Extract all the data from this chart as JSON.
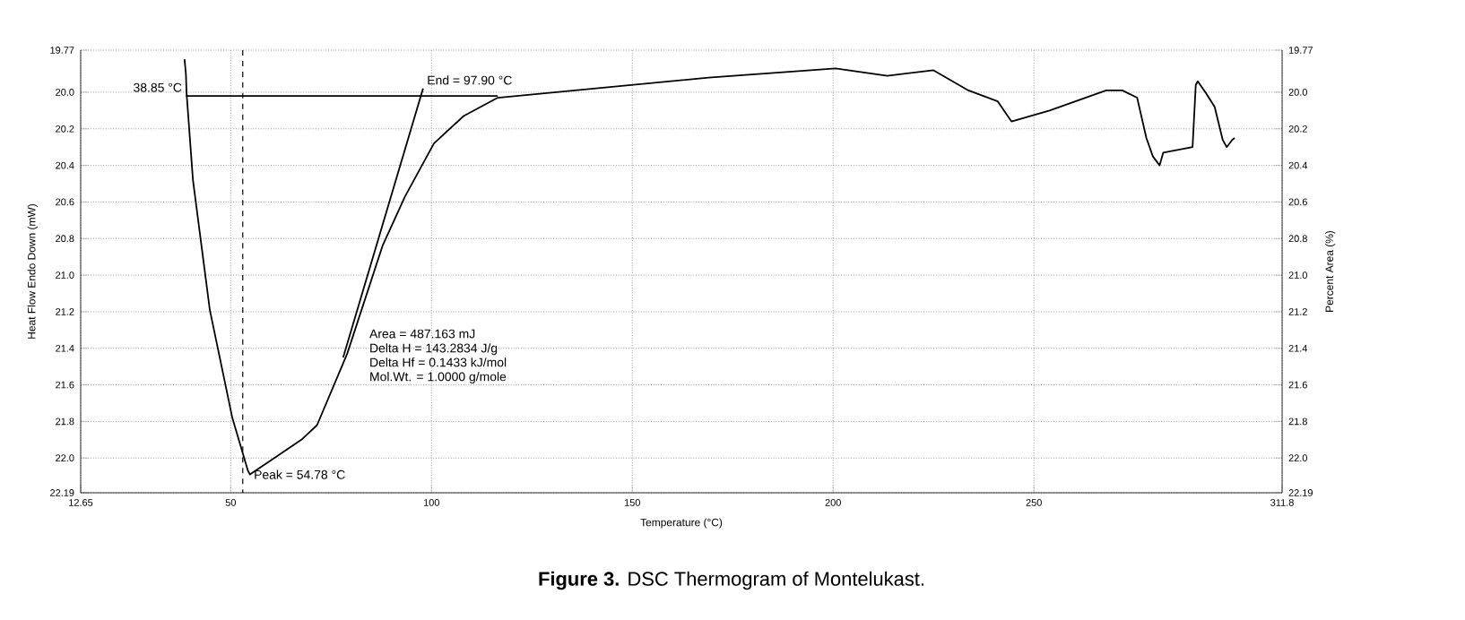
{
  "chart_data": {
    "type": "line",
    "title": "**Figure 3.** DSC Thermogram of Montelukast.",
    "xlabel": "Temperature (°C)",
    "ylabel": "Heat Flow Endo Down (mW)",
    "y2label": "Percent Area (%)",
    "xlim": [
      12.65,
      311.8
    ],
    "xticks": [
      12.65,
      50,
      100,
      150,
      200,
      250,
      311.8
    ],
    "ylim": [
      22.19,
      19.77
    ],
    "yticks": [
      19.77,
      {
        "value": 20.0,
        "label": "20.0"
      },
      20.2,
      20.4,
      20.6,
      20.8,
      {
        "value": 21.0,
        "label": "21.0"
      },
      21.2,
      21.4,
      21.6,
      21.8,
      {
        "value": 22.0,
        "label": "22.0"
      },
      22.19
    ],
    "y2lim": [
      22.19,
      19.77
    ],
    "y2ticks": [
      19.77,
      {
        "value": 20.0,
        "label": "20.0"
      },
      20.2,
      20.4,
      20.6,
      20.8,
      {
        "value": 21.0,
        "label": "21.0"
      },
      21.2,
      21.4,
      21.6,
      21.8,
      {
        "value": 22.0,
        "label": "22.0"
      },
      22.19
    ],
    "grid": true,
    "series": [
      {
        "color": "#000000",
        "x": [
          38.5,
          38.85,
          39.0,
          40.6,
          44.8,
          50.4,
          54.3,
          54.8,
          67.6,
          71.5,
          79,
          87.8,
          93.4,
          100.6,
          108,
          116.5,
          169,
          200.6,
          213.5,
          225,
          233.7,
          241,
          244.4,
          253.9,
          268,
          272,
          275.7,
          278,
          279.6,
          281.3,
          282.2,
          289.5,
          290.3,
          290.8,
          293,
          295,
          297,
          298,
          299.4,
          300
        ],
        "values": [
          19.82,
          19.9,
          20.0,
          20.48,
          21.19,
          21.78,
          22.07,
          22.09,
          21.9,
          21.82,
          21.43,
          20.84,
          20.57,
          20.28,
          20.13,
          20.03,
          19.92,
          19.87,
          19.91,
          19.88,
          19.99,
          20.05,
          20.16,
          20.1,
          19.99,
          19.99,
          20.03,
          20.25,
          20.35,
          20.4,
          20.33,
          20.3,
          19.96,
          19.94,
          20.01,
          20.08,
          20.26,
          20.3,
          20.26,
          20.25
        ]
      },
      {
        "color": "#000000",
        "x": [
          38.85,
          116.5
        ],
        "values": [
          20.02,
          20.02
        ]
      },
      {
        "color": "#000000",
        "x": [
          78,
          97.9
        ],
        "values": [
          21.45,
          19.98
        ]
      }
    ],
    "ref_lines": [
      {
        "axis": "x",
        "value": 53,
        "line_style": "dashed",
        "color": "#000000"
      }
    ],
    "annotations": [
      {
        "text": "38.85 °C",
        "x": 38.85,
        "y": 20.02
      },
      {
        "text": "End = 97.90 °C",
        "x": 97.9,
        "y": 19.98
      },
      {
        "text": "Peak = 54.78 °C",
        "x": 54.78,
        "y": 22.09
      },
      "Area = 487.163 mJ",
      "Delta H = 143.2834 J/g",
      "Delta Hf = 0.1433 kJ/mol",
      "Mol.Wt. = 1.0000 g/mole"
    ]
  }
}
